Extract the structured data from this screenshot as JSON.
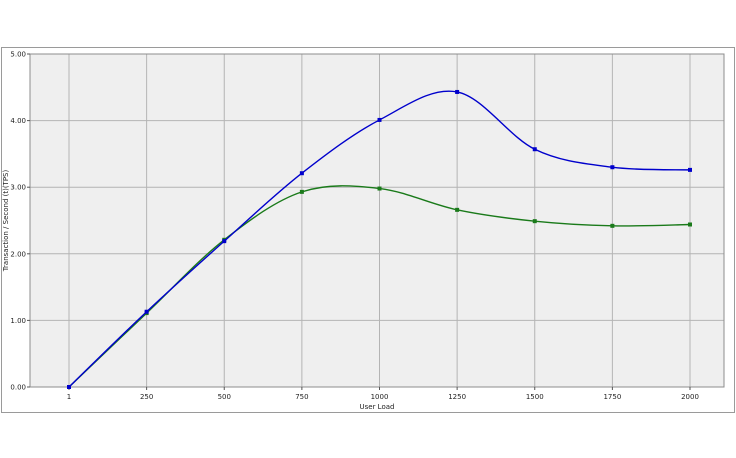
{
  "chart_data": {
    "type": "line",
    "title": "",
    "xlabel": "User Load",
    "ylabel": "Transaction / Second (t)(TPS)",
    "categories": [
      "1",
      "250",
      "500",
      "750",
      "1000",
      "1250",
      "1500",
      "1750",
      "2000"
    ],
    "ylim": [
      0,
      5
    ],
    "yticks": [
      "0.00",
      "1.00",
      "2.00",
      "3.00",
      "4.00",
      "5.00"
    ],
    "grid": true,
    "plot_background": "#efefef",
    "grid_color": "#b4b4b4",
    "series": [
      {
        "color": "#0000cc",
        "values": [
          0.0,
          1.13,
          2.19,
          3.21,
          4.01,
          4.43,
          3.57,
          3.3,
          3.26
        ]
      },
      {
        "color": "#1a7a1a",
        "values": [
          0.0,
          1.11,
          2.21,
          2.93,
          2.98,
          2.66,
          2.49,
          2.42,
          2.44
        ]
      }
    ]
  }
}
